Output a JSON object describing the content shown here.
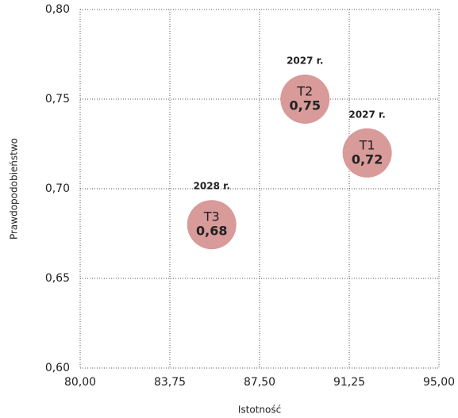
{
  "chart_data": {
    "type": "scatter",
    "x_label": "Istotność",
    "y_label": "Prawdopodobieństwo",
    "point_labels": [
      "T1",
      "T2",
      "T3"
    ],
    "x": [
      92.0,
      89.4,
      85.5
    ],
    "values": [
      0.72,
      0.75,
      0.68
    ],
    "value_labels": [
      "0,72",
      "0,75",
      "0,68"
    ],
    "annotations": [
      "2027 r.",
      "2027 r.",
      "2028 r."
    ],
    "color": "#d99a9a",
    "xlim": [
      80,
      95
    ],
    "xticks": [
      {
        "value": 80,
        "label": "80,00"
      },
      {
        "value": 83.75,
        "label": "83,75"
      },
      {
        "value": 87.5,
        "label": "87,50"
      },
      {
        "value": 91.25,
        "label": "91,25"
      },
      {
        "value": 95,
        "label": "95,00"
      }
    ],
    "ylim": [
      0.6,
      0.8
    ],
    "yticks": [
      {
        "value": 0.6,
        "label": "0,60"
      },
      {
        "value": 0.65,
        "label": "0,65"
      },
      {
        "value": 0.7,
        "label": "0,70"
      },
      {
        "value": 0.75,
        "label": "0,75"
      },
      {
        "value": 0.8,
        "label": "0,80"
      }
    ],
    "grid": true
  }
}
